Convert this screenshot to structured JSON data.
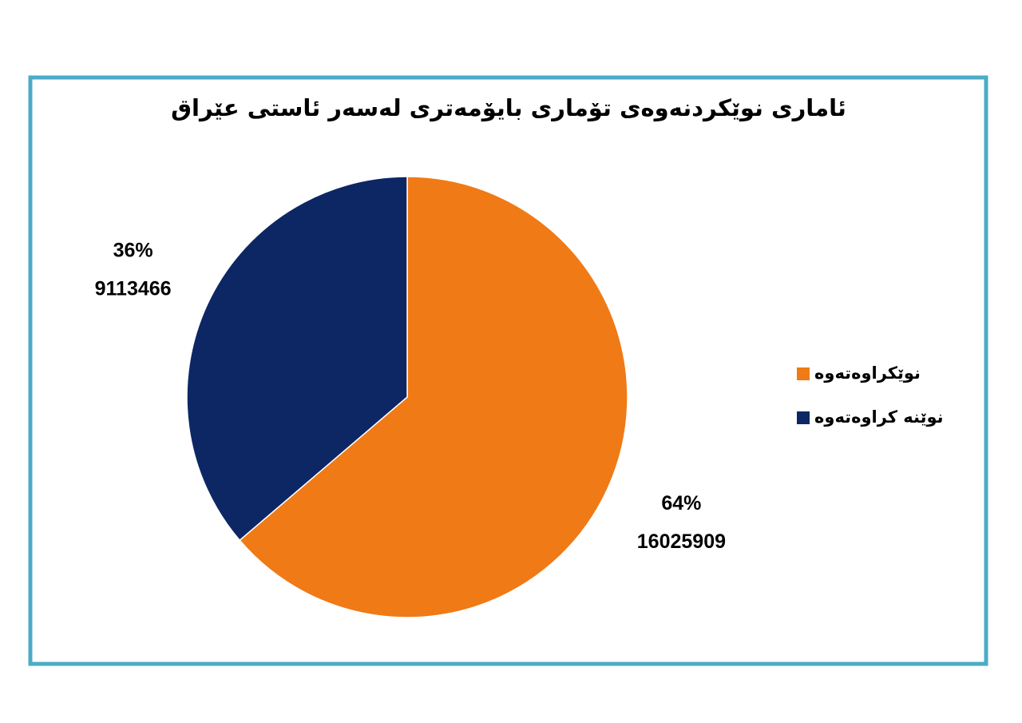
{
  "chart_data": {
    "type": "pie",
    "title": "ئاماری نوێکردنەوەی تۆماری بایۆمەتری لەسەر ئاستی عێراق",
    "categories": [
      "نوێکراوەتەوە",
      "نوێنە کراوەتەوە"
    ],
    "values": [
      16025909,
      9113466
    ],
    "value_labels": [
      "64%",
      "36%"
    ],
    "colors": [
      "#f07a16",
      "#0c2764"
    ],
    "legend": "right"
  }
}
